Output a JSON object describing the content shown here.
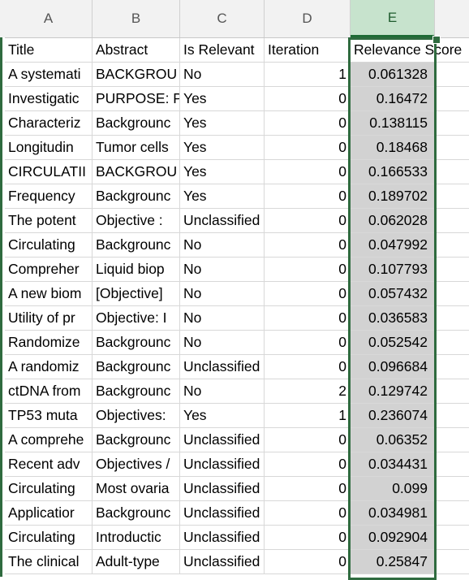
{
  "columns": [
    "A",
    "B",
    "C",
    "D",
    "E"
  ],
  "header": [
    "Title",
    "Abstract",
    "Is Relevant",
    "Iteration",
    "Relevance Score"
  ],
  "rows": [
    [
      "A systemati",
      "BACKGROU",
      "No",
      "1",
      "0.061328"
    ],
    [
      "Investigatic",
      "PURPOSE: P",
      "Yes",
      "0",
      "0.16472"
    ],
    [
      "Characteriz",
      "Backgrounc",
      "Yes",
      "0",
      "0.138115"
    ],
    [
      "Longitudin",
      "Tumor cells",
      "Yes",
      "0",
      "0.18468"
    ],
    [
      "CIRCULATII",
      "BACKGROU",
      "Yes",
      "0",
      "0.166533"
    ],
    [
      "Frequency",
      "Backgrounc",
      "Yes",
      "0",
      "0.189702"
    ],
    [
      "The potent",
      "Objective :",
      "Unclassified",
      "0",
      "0.062028"
    ],
    [
      "Circulating",
      "Backgrounc",
      "No",
      "0",
      "0.047992"
    ],
    [
      "Compreher",
      "Liquid biop",
      "No",
      "0",
      "0.107793"
    ],
    [
      "A new biom",
      "[Objective]",
      "No",
      "0",
      "0.057432"
    ],
    [
      "Utility of pr",
      "Objective: I",
      "No",
      "0",
      "0.036583"
    ],
    [
      "Randomize",
      "Backgrounc",
      "No",
      "0",
      "0.052542"
    ],
    [
      "A randomiz",
      "Backgrounc",
      "Unclassified",
      "0",
      "0.096684"
    ],
    [
      "ctDNA from",
      "Backgrounc",
      "No",
      "2",
      "0.129742"
    ],
    [
      "TP53 muta",
      "Objectives:",
      "Yes",
      "1",
      "0.236074"
    ],
    [
      "A comprehe",
      "Backgrounc",
      "Unclassified",
      "0",
      "0.06352"
    ],
    [
      "Recent adv",
      "Objectives /",
      "Unclassified",
      "0",
      "0.034431"
    ],
    [
      "Circulating",
      "Most ovaria",
      "Unclassified",
      "0",
      "0.099"
    ],
    [
      "Applicatior",
      "Backgrounc",
      "Unclassified",
      "0",
      "0.034981"
    ],
    [
      "Circulating",
      "Introductic",
      "Unclassified",
      "0",
      "0.092904"
    ],
    [
      "The clinical",
      "Adult-type",
      "Unclassified",
      "0",
      "0.25847"
    ]
  ],
  "selected_column": "E",
  "colors": {
    "selection": "#2f6b3f",
    "selected_header": "#c7e3cd",
    "selected_cells": "#d2d2d2"
  }
}
